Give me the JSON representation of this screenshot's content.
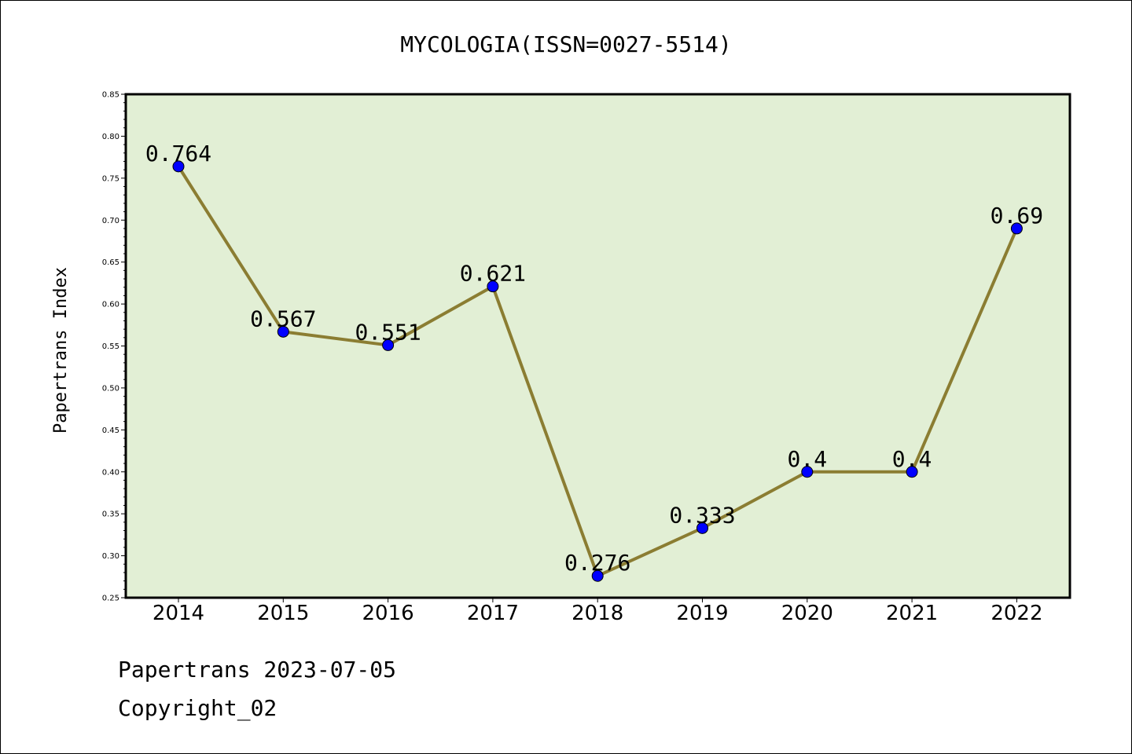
{
  "chart_data": {
    "type": "line",
    "title": "MYCOLOGIA(ISSN=0027-5514)",
    "xlabel": "",
    "ylabel": "Papertrans Index",
    "categories": [
      "2014",
      "2015",
      "2016",
      "2017",
      "2018",
      "2019",
      "2020",
      "2021",
      "2022"
    ],
    "values": [
      0.764,
      0.567,
      0.551,
      0.621,
      0.276,
      0.333,
      0.4,
      0.4,
      0.69
    ],
    "data_labels": [
      "0.764",
      "0.567",
      "0.551",
      "0.621",
      "0.276",
      "0.333",
      "0.4",
      "0.4",
      "0.69"
    ],
    "ylim": [
      0.25,
      0.85
    ],
    "yticks": [
      "0.25",
      "0.30",
      "0.35",
      "0.40",
      "0.45",
      "0.50",
      "0.55",
      "0.60",
      "0.65",
      "0.70",
      "0.75",
      "0.80",
      "0.85"
    ],
    "grid": false,
    "legend": "none",
    "colors": {
      "plot_background": "#e2efd5",
      "line": "#8b7d32",
      "marker": "#0000ff",
      "marker_edge": "#000000",
      "axes": "#000000"
    }
  },
  "footer": {
    "date_line": "Papertrans 2023-07-05",
    "copyright_line": "Copyright_02"
  }
}
